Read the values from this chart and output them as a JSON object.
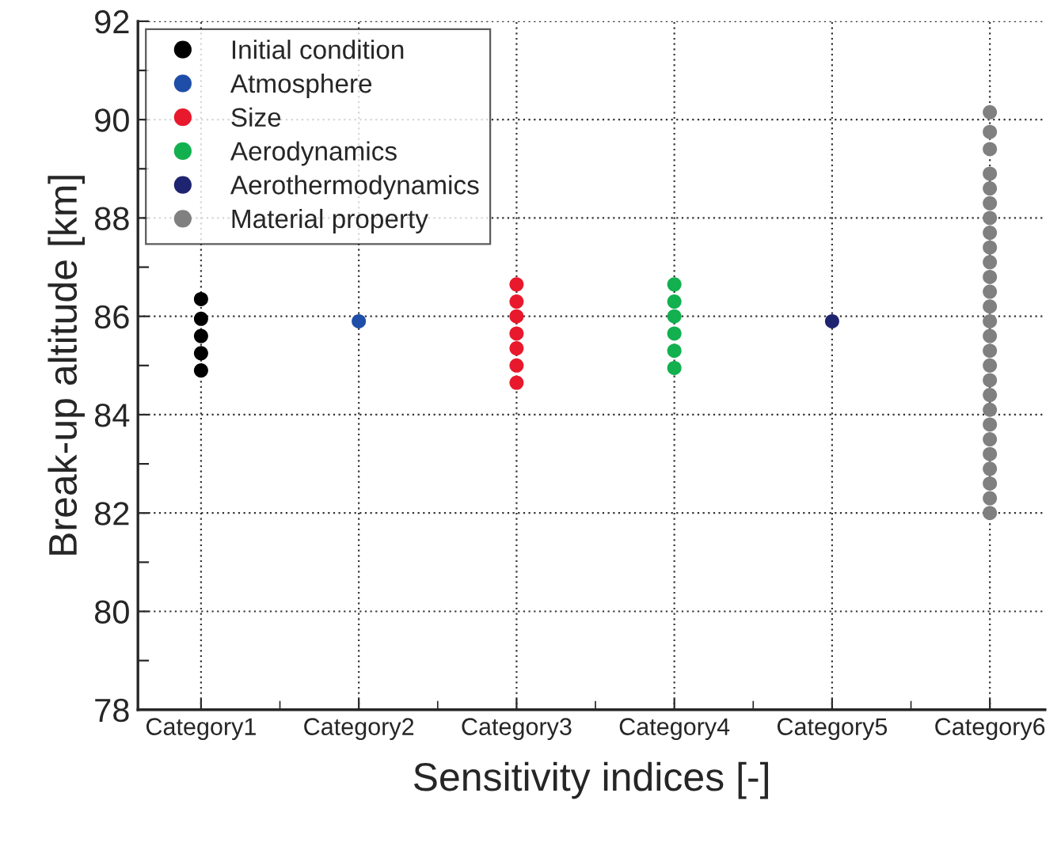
{
  "chart_data": {
    "type": "scatter",
    "xlabel": "Sensitivity indices [-]",
    "ylabel": "Break-up altitude [km]",
    "categories": [
      "Category1",
      "Category2",
      "Category3",
      "Category4",
      "Category5",
      "Category6"
    ],
    "ylim": [
      78,
      92
    ],
    "yticks": [
      78,
      {
        "value": 79,
        "label": null
      },
      80,
      {
        "value": 81,
        "label": null
      },
      82,
      {
        "value": 83,
        "label": null
      },
      84,
      {
        "value": 85,
        "label": null
      },
      86,
      {
        "value": 87,
        "label": null
      },
      88,
      {
        "value": 89,
        "label": null
      },
      90,
      {
        "value": 91,
        "label": null
      },
      92
    ],
    "grid": true,
    "legend": "top left",
    "marker": "circle",
    "series": [
      {
        "name": "Initial condition",
        "color": "#000000",
        "x": [
          "Category1",
          "Category1",
          "Category1",
          "Category1",
          "Category1"
        ],
        "values": [
          84.9,
          85.25,
          85.6,
          85.95,
          86.35
        ]
      },
      {
        "name": "Atmosphere",
        "color": "#1f4ea8",
        "x": [
          "Category2"
        ],
        "values": [
          85.9
        ]
      },
      {
        "name": "Size",
        "color": "#e8192c",
        "x": [
          "Category3",
          "Category3",
          "Category3",
          "Category3",
          "Category3",
          "Category3",
          "Category3"
        ],
        "values": [
          84.65,
          85.0,
          85.35,
          85.65,
          86.0,
          86.3,
          86.65
        ]
      },
      {
        "name": "Aerodynamics",
        "color": "#12b04f",
        "x": [
          "Category4",
          "Category4",
          "Category4",
          "Category4",
          "Category4",
          "Category4"
        ],
        "values": [
          84.95,
          85.3,
          85.65,
          86.0,
          86.3,
          86.65
        ]
      },
      {
        "name": "Aerothermodynamics",
        "color": "#1f2470",
        "x": [
          "Category5"
        ],
        "values": [
          85.9
        ]
      },
      {
        "name": "Material property",
        "color": "#808080",
        "x": [
          "Category6",
          "Category6",
          "Category6",
          "Category6",
          "Category6",
          "Category6",
          "Category6",
          "Category6",
          "Category6",
          "Category6",
          "Category6",
          "Category6",
          "Category6",
          "Category6",
          "Category6",
          "Category6",
          "Category6",
          "Category6",
          "Category6",
          "Category6",
          "Category6",
          "Category6",
          "Category6",
          "Category6",
          "Category6",
          "Category6",
          "Category6"
        ],
        "values": [
          82.0,
          82.3,
          82.6,
          82.9,
          83.2,
          83.5,
          83.8,
          84.1,
          84.4,
          84.7,
          85.0,
          85.3,
          85.6,
          85.9,
          86.2,
          86.5,
          86.8,
          87.1,
          87.4,
          87.7,
          88.0,
          88.3,
          88.6,
          88.9,
          89.4,
          89.75,
          90.15
        ]
      }
    ]
  }
}
